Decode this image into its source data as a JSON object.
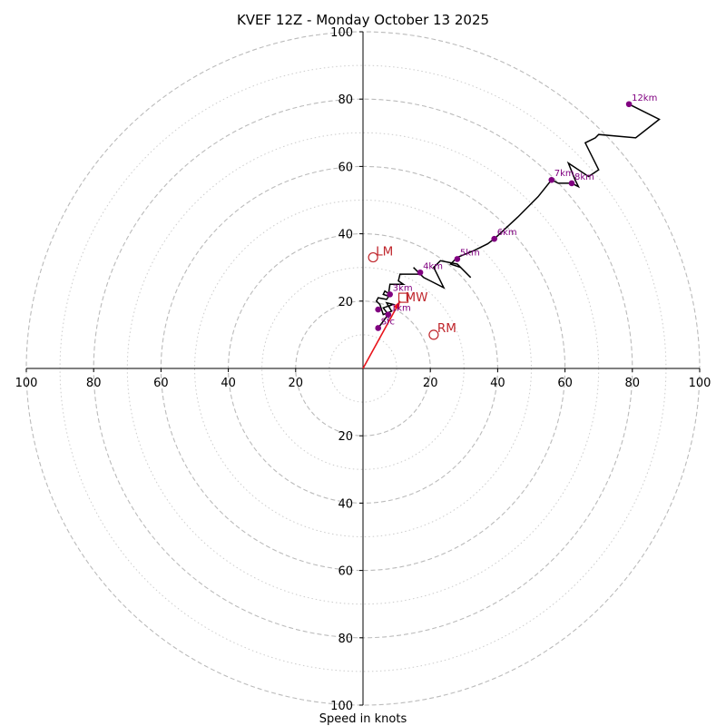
{
  "chart_data": {
    "type": "hodograph",
    "title": "KVEF 12Z - Monday October 13 2025",
    "xlabel": "Speed in knots",
    "range": [
      -100,
      100
    ],
    "ring_major": [
      20,
      40,
      60,
      80,
      100
    ],
    "ring_minor": [
      10,
      30,
      50,
      70,
      90
    ],
    "ticks": [
      {
        "v": -100,
        "label": "100"
      },
      {
        "v": -80,
        "label": "80"
      },
      {
        "v": -60,
        "label": "60"
      },
      {
        "v": -40,
        "label": "40"
      },
      {
        "v": -20,
        "label": "20"
      },
      {
        "v": 20,
        "label": "20"
      },
      {
        "v": 40,
        "label": "40"
      },
      {
        "v": 60,
        "label": "60"
      },
      {
        "v": 80,
        "label": "80"
      },
      {
        "v": 100,
        "label": "100"
      }
    ],
    "wind_profile": [
      [
        4.5,
        12
      ],
      [
        7.5,
        16
      ],
      [
        6,
        18
      ],
      [
        9,
        19
      ],
      [
        7,
        19.5
      ],
      [
        8.5,
        17
      ],
      [
        6,
        16
      ],
      [
        5,
        19
      ],
      [
        4,
        20
      ],
      [
        4.5,
        21
      ],
      [
        7,
        20.5
      ],
      [
        8,
        22
      ],
      [
        6.5,
        23
      ],
      [
        6,
        22
      ],
      [
        7.5,
        21.5
      ],
      [
        8,
        25
      ],
      [
        12,
        25
      ],
      [
        10.5,
        26
      ],
      [
        11,
        28
      ],
      [
        17,
        28
      ],
      [
        15,
        30
      ],
      [
        18,
        27
      ],
      [
        20,
        26
      ],
      [
        24,
        24
      ],
      [
        22,
        28
      ],
      [
        21,
        30
      ],
      [
        23,
        32
      ],
      [
        28,
        31
      ],
      [
        32,
        27
      ],
      [
        29,
        30
      ],
      [
        26,
        31
      ],
      [
        28,
        33
      ],
      [
        33,
        35
      ],
      [
        37,
        37
      ],
      [
        39,
        38.5
      ],
      [
        46,
        45
      ],
      [
        52,
        51
      ],
      [
        56,
        56
      ],
      [
        58,
        55
      ],
      [
        62,
        55
      ],
      [
        64,
        54
      ],
      [
        63,
        56
      ],
      [
        61,
        61
      ],
      [
        67,
        57
      ],
      [
        70,
        59
      ],
      [
        66,
        67
      ],
      [
        69,
        68.5
      ],
      [
        70,
        69.5
      ],
      [
        81,
        68.5
      ],
      [
        88,
        74
      ],
      [
        79,
        78.5
      ]
    ],
    "height_markers": [
      {
        "label": "Sfc",
        "u": 4.5,
        "v": 12
      },
      {
        "label": "1km",
        "u": 7.5,
        "v": 16
      },
      {
        "label": "3km",
        "u": 8,
        "v": 22
      },
      {
        "label": "",
        "u": 4.5,
        "v": 17.5
      },
      {
        "label": "4km",
        "u": 17,
        "v": 28.5
      },
      {
        "label": "5km",
        "u": 28,
        "v": 32.5
      },
      {
        "label": "6km",
        "u": 39,
        "v": 38.5
      },
      {
        "label": "7km",
        "u": 56,
        "v": 56
      },
      {
        "label": "8km",
        "u": 62,
        "v": 55
      },
      {
        "label": "12km",
        "u": 79,
        "v": 78.5
      }
    ],
    "storm_motion": {
      "vector_to": [
        11,
        20
      ],
      "MW": {
        "label": "MW",
        "u": 12,
        "v": 21
      },
      "LM": {
        "label": "LM",
        "u": 3,
        "v": 33
      },
      "RM": {
        "label": "RM",
        "u": 21,
        "v": 10
      }
    },
    "colors": {
      "grid_major": "#bbbbbb",
      "grid_minor": "#cccccc",
      "hodo": "#000000",
      "marker": "#800080",
      "storm": "#c0272d",
      "vector": "#e8141b"
    }
  }
}
